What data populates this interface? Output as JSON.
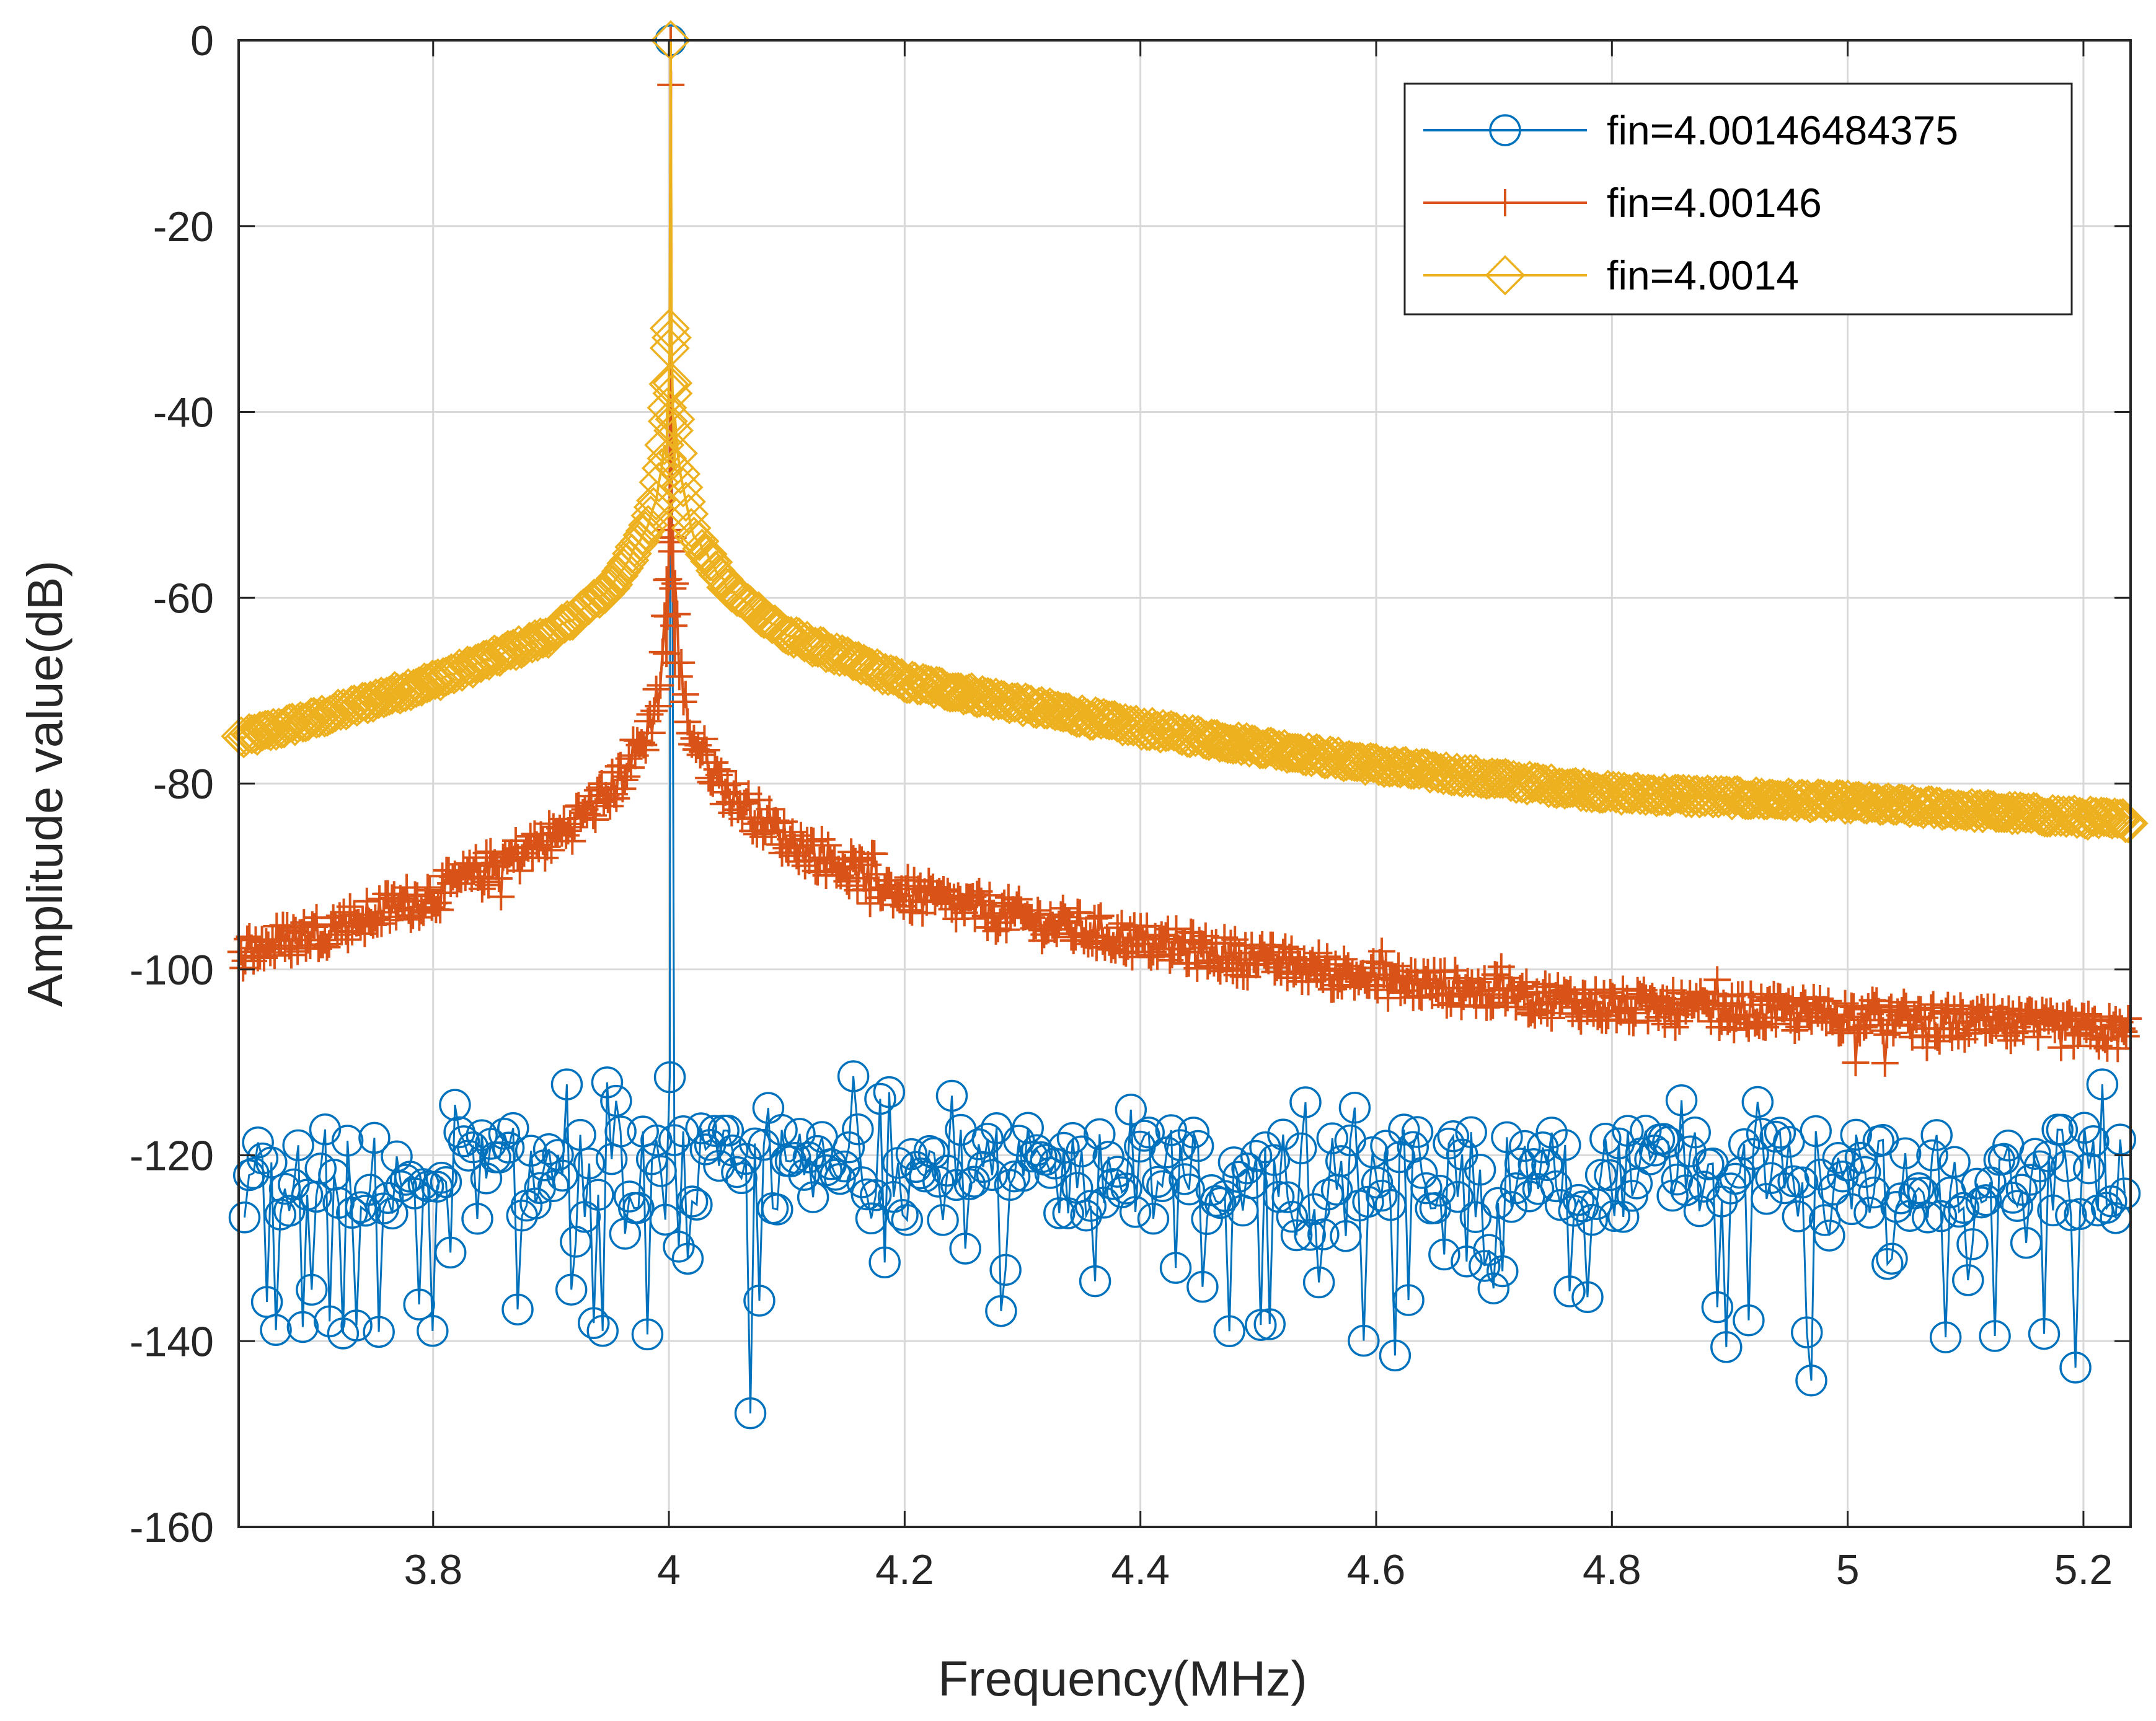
{
  "chart_data": {
    "type": "line",
    "title": "",
    "xlabel": "Frequency(MHz)",
    "ylabel": "Amplitude value(dB)",
    "xlim": [
      3.635,
      5.24
    ],
    "ylim": [
      -160,
      0
    ],
    "grid": true,
    "legend_position": "top-right",
    "xticks": [
      {
        "value": 3.8,
        "label": "3.8"
      },
      {
        "value": 4.0,
        "label": "4"
      },
      {
        "value": 4.2,
        "label": "4.2"
      },
      {
        "value": 4.4,
        "label": "4.4"
      },
      {
        "value": 4.6,
        "label": "4.6"
      },
      {
        "value": 4.8,
        "label": "4.8"
      },
      {
        "value": 5.0,
        "label": "5"
      },
      {
        "value": 5.2,
        "label": "5.2"
      }
    ],
    "yticks": [
      {
        "value": 0,
        "label": "0"
      },
      {
        "value": -20,
        "label": "-20"
      },
      {
        "value": -40,
        "label": "-40"
      },
      {
        "value": -60,
        "label": "-60"
      },
      {
        "value": -80,
        "label": "-80"
      },
      {
        "value": -100,
        "label": "-100"
      },
      {
        "value": -120,
        "label": "-120"
      },
      {
        "value": -140,
        "label": "-140"
      },
      {
        "value": -160,
        "label": "-160"
      }
    ],
    "peak_frequency": 4.0015,
    "series": [
      {
        "name": "fin=4.00146484375",
        "color": "#0072BD",
        "marker": "circle",
        "style": "stem",
        "peak_db": 0,
        "noise_floor_db": -122,
        "noise_range_db": [
          -150,
          -111
        ],
        "profile": [
          {
            "x": 3.64,
            "y": -121
          },
          {
            "x": 3.7,
            "y": -124
          },
          {
            "x": 3.8,
            "y": -120
          },
          {
            "x": 3.9,
            "y": -123
          },
          {
            "x": 4.0,
            "y": -121
          },
          {
            "x": 4.0015,
            "y": 0
          },
          {
            "x": 4.1,
            "y": -122
          },
          {
            "x": 4.2,
            "y": -121
          },
          {
            "x": 4.4,
            "y": -123
          },
          {
            "x": 4.6,
            "y": -121
          },
          {
            "x": 4.8,
            "y": -122
          },
          {
            "x": 5.0,
            "y": -121
          },
          {
            "x": 5.24,
            "y": -122
          }
        ]
      },
      {
        "name": "fin=4.00146",
        "color": "#D95319",
        "marker": "plus",
        "style": "line",
        "profile": [
          {
            "x": 3.64,
            "y": -98
          },
          {
            "x": 3.7,
            "y": -96
          },
          {
            "x": 3.8,
            "y": -92
          },
          {
            "x": 3.9,
            "y": -86
          },
          {
            "x": 3.95,
            "y": -81
          },
          {
            "x": 3.98,
            "y": -75
          },
          {
            "x": 3.99,
            "y": -71
          },
          {
            "x": 3.995,
            "y": -66
          },
          {
            "x": 4.0,
            "y": -52
          },
          {
            "x": 4.0015,
            "y": 0
          },
          {
            "x": 4.003,
            "y": -52
          },
          {
            "x": 4.008,
            "y": -66
          },
          {
            "x": 4.013,
            "y": -71
          },
          {
            "x": 4.02,
            "y": -75
          },
          {
            "x": 4.05,
            "y": -81
          },
          {
            "x": 4.1,
            "y": -86
          },
          {
            "x": 4.2,
            "y": -92
          },
          {
            "x": 4.4,
            "y": -97
          },
          {
            "x": 4.6,
            "y": -101
          },
          {
            "x": 4.8,
            "y": -104
          },
          {
            "x": 5.0,
            "y": -105
          },
          {
            "x": 5.24,
            "y": -107
          }
        ]
      },
      {
        "name": "fin=4.0014",
        "color": "#EDB120",
        "marker": "diamond",
        "style": "line",
        "profile": [
          {
            "x": 3.64,
            "y": -75
          },
          {
            "x": 3.7,
            "y": -73
          },
          {
            "x": 3.8,
            "y": -69
          },
          {
            "x": 3.9,
            "y": -64
          },
          {
            "x": 3.95,
            "y": -59
          },
          {
            "x": 3.98,
            "y": -53
          },
          {
            "x": 3.99,
            "y": -49
          },
          {
            "x": 3.995,
            "y": -45
          },
          {
            "x": 4.0,
            "y": -37
          },
          {
            "x": 4.001,
            "y": -31
          },
          {
            "x": 4.0015,
            "y": 0
          },
          {
            "x": 4.002,
            "y": -31
          },
          {
            "x": 4.003,
            "y": -37
          },
          {
            "x": 4.008,
            "y": -45
          },
          {
            "x": 4.013,
            "y": -49
          },
          {
            "x": 4.02,
            "y": -53
          },
          {
            "x": 4.05,
            "y": -59
          },
          {
            "x": 4.1,
            "y": -64
          },
          {
            "x": 4.2,
            "y": -69
          },
          {
            "x": 4.4,
            "y": -74
          },
          {
            "x": 4.6,
            "y": -78
          },
          {
            "x": 4.8,
            "y": -81
          },
          {
            "x": 5.0,
            "y": -82
          },
          {
            "x": 5.24,
            "y": -84
          }
        ]
      }
    ]
  }
}
